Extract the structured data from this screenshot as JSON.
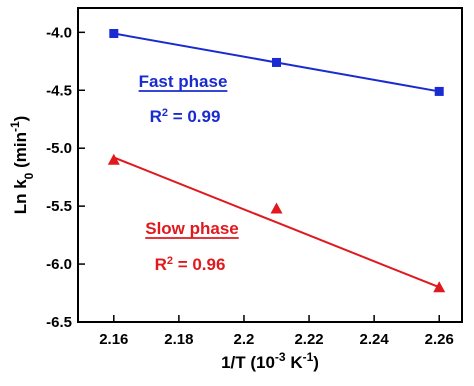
{
  "chart_data": {
    "type": "scatter",
    "x": [
      2.16,
      2.21,
      2.26
    ],
    "series": [
      {
        "name": "Fast phase",
        "color": "#1a2ccf",
        "marker": "square",
        "values": [
          -4.01,
          -4.26,
          -4.51
        ],
        "fit": [
          -4.01,
          -4.26,
          -4.51
        ],
        "r2_label": "R",
        "r2_exp": "2",
        "r2_value": " = 0.99"
      },
      {
        "name": "Slow phase",
        "color": "#e0191e",
        "marker": "triangle",
        "values": [
          -5.1,
          -5.52,
          -6.2
        ],
        "fit": [
          -5.08,
          -5.64,
          -6.2
        ],
        "r2_label": "R",
        "r2_exp": "2",
        "r2_value": " = 0.96"
      }
    ],
    "xlabel": [
      "1/T (10",
      "-3",
      " K",
      "-1",
      ")"
    ],
    "ylabel": [
      "Ln k",
      "0",
      " (min",
      "-1",
      ")"
    ],
    "xlim": [
      2.149,
      2.267
    ],
    "xticks": [
      2.16,
      2.18,
      2.2,
      2.22,
      2.24,
      2.26
    ],
    "ylim": [
      -6.5,
      -3.79
    ],
    "yticks": [
      {
        "value": -4,
        "label": "-4.0"
      },
      -4.5,
      {
        "value": -5,
        "label": "-5.0"
      },
      -5.5,
      {
        "value": -6,
        "label": "-6.0"
      },
      -6.5
    ]
  }
}
